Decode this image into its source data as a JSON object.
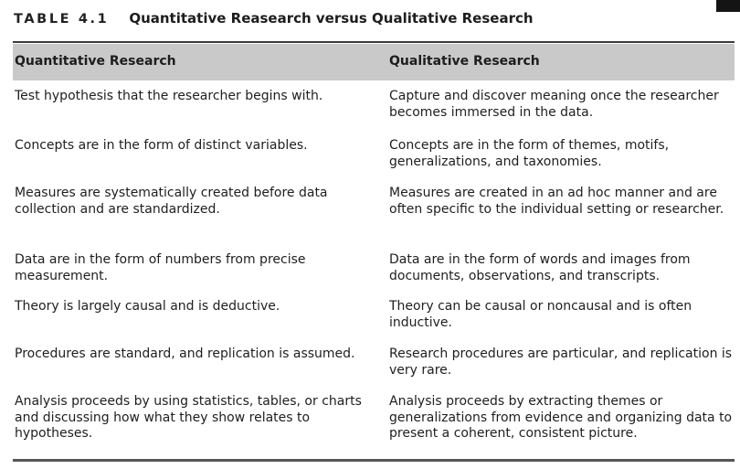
{
  "table": {
    "label": "TABLE 4.1",
    "title": "Quantitative Reasearch versus Qualitative Research",
    "headers": [
      "Quantitative Research",
      "Qualitative Research"
    ],
    "rows": [
      [
        "Test hypothesis that the researcher begins with.",
        "Capture and discover meaning once the researcher becomes immersed in the data."
      ],
      [
        "Concepts are in the form of distinct variables.",
        "Concepts are in the form of themes, motifs, generalizations, and taxonomies."
      ],
      [
        "Measures are systematically created before data collection and are standardized.",
        "Measures are created in an ad hoc manner and are often specific to the individual setting or researcher."
      ],
      [
        "Data are in the form of numbers from precise measurement.",
        "Data are in the form of words and images from documents, observations, and transcripts."
      ],
      [
        "Theory is largely causal and is deductive.",
        "Theory can be causal or noncausal and is often inductive."
      ],
      [
        "Procedures are standard, and replication is assumed.",
        "Research procedures are particular, and replication is very rare."
      ],
      [
        "Analysis proceeds by using statistics, tables, or charts and discussing how what they show relates to hypotheses.",
        "Analysis proceeds by extracting themes or generalizations from evidence and organizing data to present a coherent, consistent picture."
      ]
    ]
  }
}
